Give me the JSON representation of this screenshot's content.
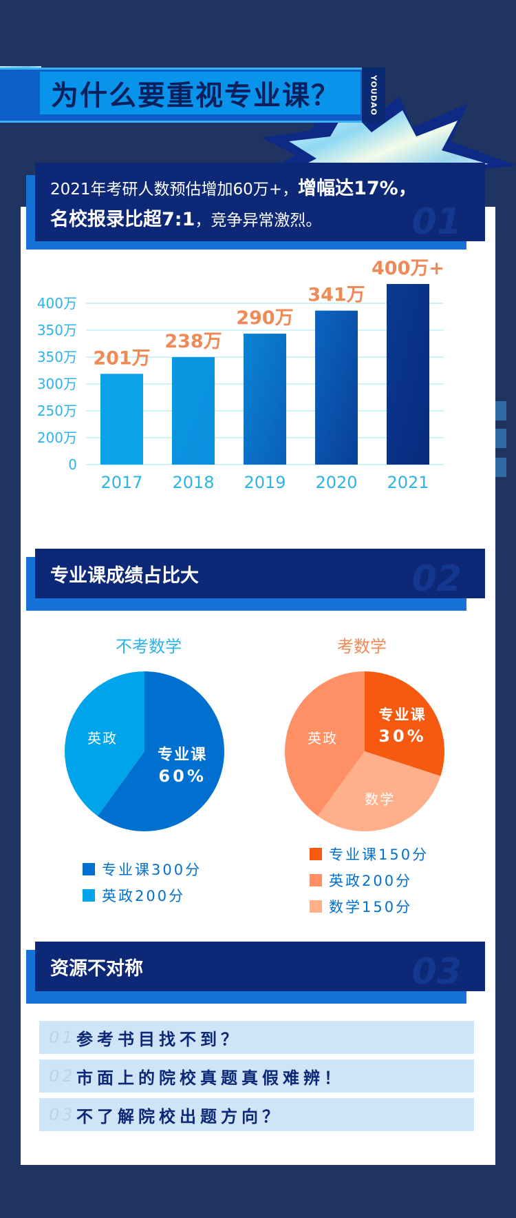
{
  "banner": {
    "title": "为什么要重视专业课？",
    "tab": "YOUDAO"
  },
  "section1": {
    "text_normal_1": "2021年考研人数预估增加60万+，",
    "text_bold_1": "增幅达17%，",
    "text_bold_2": "名校报录比超7:1",
    "text_normal_2": "，竞争异常激烈。",
    "num": "01"
  },
  "section2": {
    "title": "专业课成绩占比大",
    "num": "02"
  },
  "section3": {
    "title": "资源不对称",
    "num": "03"
  },
  "colors": {
    "navy": "#0d2876",
    "blue": "#0070d0",
    "cyan": "#00a4ea",
    "orange": "#f65a10",
    "salmon": "#ff9066",
    "peach": "#ffb08a",
    "label": "#ef8a57"
  },
  "chart_data": [
    {
      "type": "bar",
      "categories": [
        "2017",
        "2018",
        "2019",
        "2020",
        "2021"
      ],
      "values": [
        201,
        238,
        290,
        341,
        400
      ],
      "data_labels": [
        "201万",
        "238万",
        "290万",
        "341万",
        "400万+"
      ],
      "y_tick_labels": [
        "0",
        "200万",
        "250万",
        "300万",
        "350万",
        "350万",
        "400万"
      ],
      "ylim": [
        0,
        400
      ],
      "grid": true
    },
    {
      "type": "pie",
      "title": "不考数学",
      "slices": [
        {
          "label": "专业课",
          "value": 60,
          "value_label": "60%",
          "color": "#0070d0"
        },
        {
          "label": "英政",
          "value": 40,
          "color": "#00a4ea"
        }
      ],
      "legend": [
        "专业课300分",
        "英政200分"
      ]
    },
    {
      "type": "pie",
      "title": "考数学",
      "slices": [
        {
          "label": "专业课",
          "value": 30,
          "value_label": "30%",
          "color": "#f65a10"
        },
        {
          "label": "数学",
          "value": 30,
          "color": "#ffb08a"
        },
        {
          "label": "英政",
          "value": 40,
          "color": "#ff9066"
        }
      ],
      "legend": [
        "专业课150分",
        "英政200分",
        "数学150分"
      ]
    }
  ],
  "resources": [
    {
      "num": "01",
      "text": "参考书目找不到？"
    },
    {
      "num": "02",
      "text": "市面上的院校真题真假难辨！"
    },
    {
      "num": "03",
      "text": "不了解院校出题方向？"
    }
  ]
}
